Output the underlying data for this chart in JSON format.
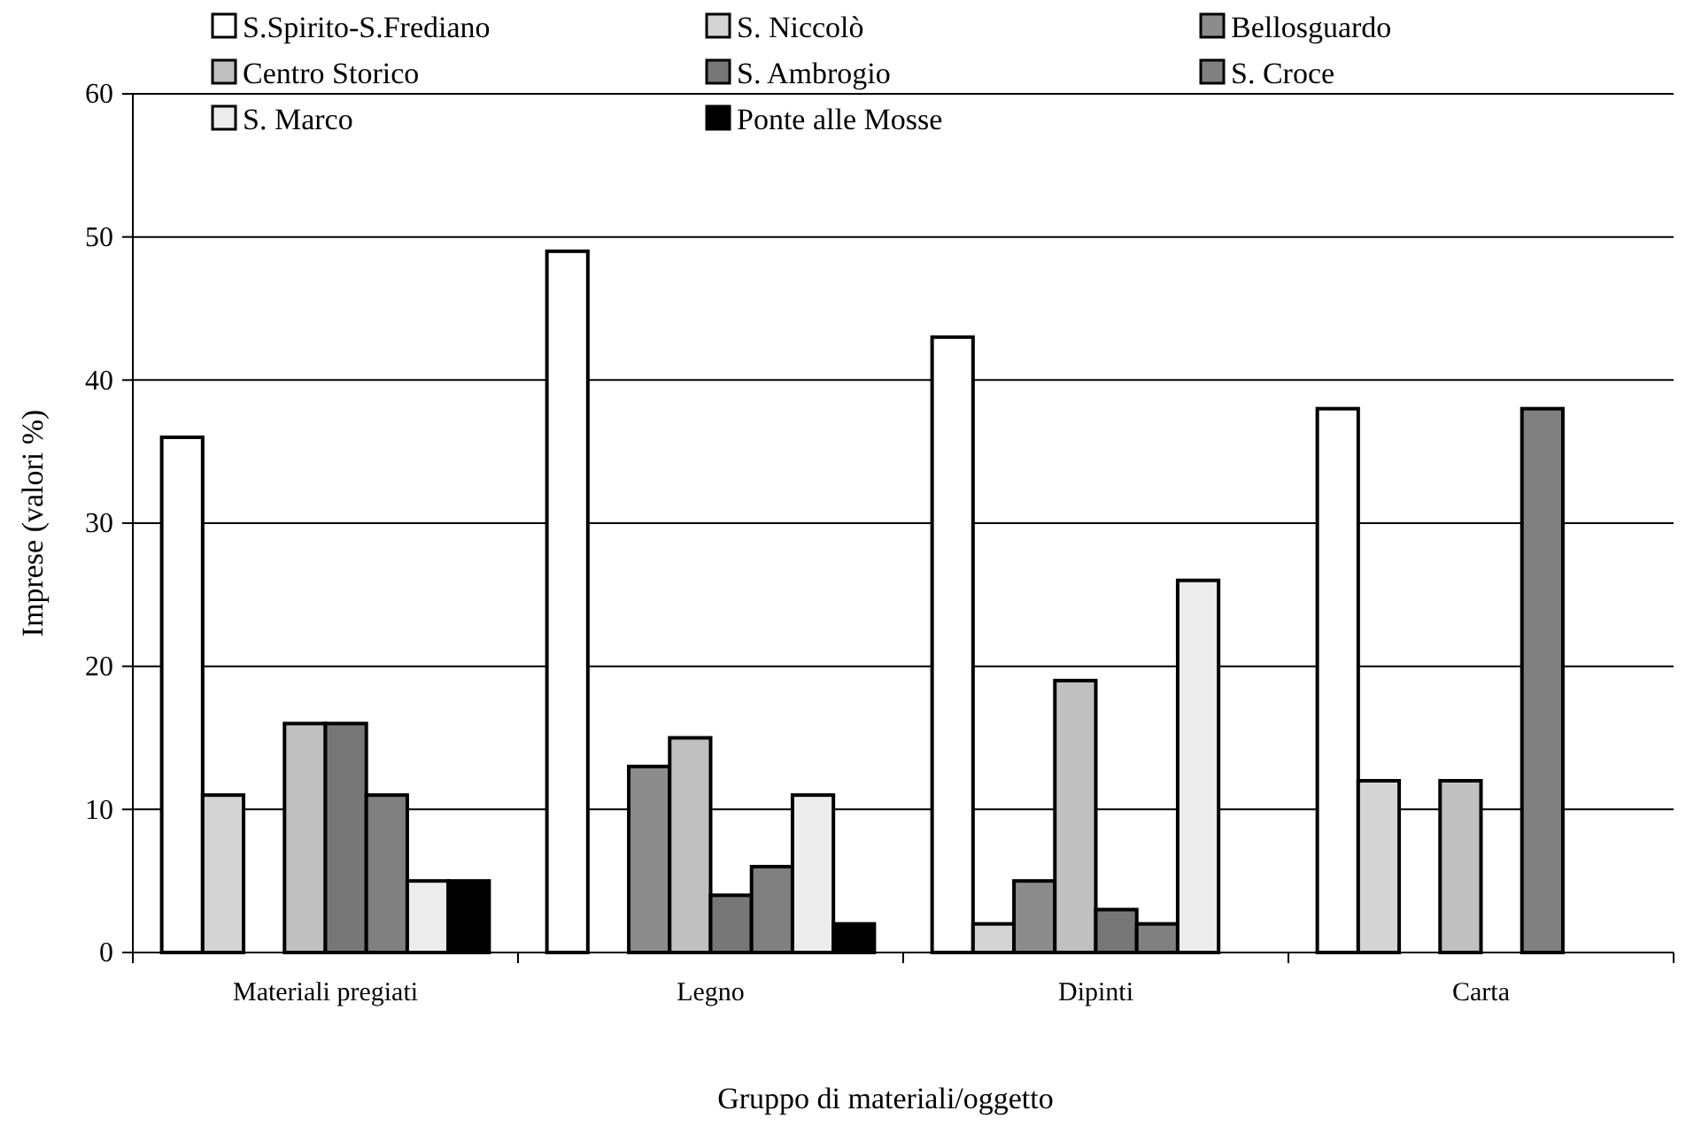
{
  "chart_data": {
    "type": "bar",
    "xlabel": "Gruppo di materiali/oggetto",
    "ylabel": "Imprese (valori %)",
    "categories": [
      "Materiali pregiati",
      "Legno",
      "Dipinti",
      "Carta"
    ],
    "series": [
      {
        "name": "S.Spirito-S.Frediano",
        "color": "#ffffff",
        "values": [
          36,
          49,
          43,
          38
        ]
      },
      {
        "name": "S. Niccolò",
        "color": "#d4d4d4",
        "values": [
          11,
          null,
          2,
          12
        ]
      },
      {
        "name": "Bellosguardo",
        "color": "#8c8c8c",
        "values": [
          null,
          13,
          5,
          null
        ]
      },
      {
        "name": "Centro Storico",
        "color": "#c0c0c0",
        "values": [
          16,
          15,
          19,
          12
        ]
      },
      {
        "name": "S. Ambrogio",
        "color": "#777777",
        "values": [
          16,
          4,
          3,
          null
        ]
      },
      {
        "name": "S. Croce",
        "color": "#808080",
        "values": [
          11,
          6,
          2,
          38
        ]
      },
      {
        "name": "S. Marco",
        "color": "#ececec",
        "values": [
          5,
          11,
          26,
          null
        ]
      },
      {
        "name": "Ponte alle Mosse",
        "color": "#000000",
        "values": [
          5,
          2,
          null,
          null
        ]
      }
    ],
    "ylim": [
      0,
      60
    ],
    "yticks": [
      0,
      10,
      20,
      30,
      40,
      50,
      60
    ],
    "grid": "y",
    "legend": "top"
  }
}
